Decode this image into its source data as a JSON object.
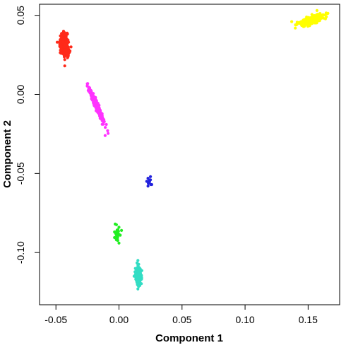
{
  "chart_data": {
    "type": "scatter",
    "title": "",
    "xlabel": "Component 1",
    "ylabel": "Component 2",
    "xlim": [
      -0.063,
      0.175
    ],
    "ylim": [
      -0.133,
      0.057
    ],
    "grid": false,
    "legend": "none",
    "x_ticks": [
      {
        "value": -0.05,
        "label": "-0.05"
      },
      {
        "value": 0.0,
        "label": "0.00"
      },
      {
        "value": 0.05,
        "label": "0.05"
      },
      {
        "value": 0.1,
        "label": "0.10"
      },
      {
        "value": 0.15,
        "label": "0.15"
      }
    ],
    "y_ticks": [
      {
        "value": 0.05,
        "label": "0.05"
      },
      {
        "value": 0.0,
        "label": "0.00"
      },
      {
        "value": -0.05,
        "label": "-0.05"
      },
      {
        "value": -0.1,
        "label": "-0.10"
      }
    ],
    "clusters": [
      {
        "color": "#ff2a1a",
        "center": [
          -0.0435,
          0.0315
        ],
        "n_points": 420,
        "points": [
          [
            -0.0435,
            0.0315
          ],
          [
            -0.047,
            0.0305
          ],
          [
            -0.04,
            0.033
          ],
          [
            -0.045,
            0.035
          ],
          [
            -0.042,
            0.028
          ],
          [
            -0.049,
            0.033
          ],
          [
            -0.038,
            0.03
          ],
          [
            -0.044,
            0.037
          ],
          [
            -0.046,
            0.026
          ],
          [
            -0.043,
            0.022
          ],
          [
            -0.043,
            0.018
          ]
        ]
      },
      {
        "color": "#ff33ff",
        "center": [
          -0.0175,
          -0.0075
        ],
        "n_points": 380,
        "points": [
          [
            -0.024,
            0.002
          ],
          [
            -0.022,
            -0.001
          ],
          [
            -0.02,
            -0.004
          ],
          [
            -0.018,
            -0.007
          ],
          [
            -0.016,
            -0.01
          ],
          [
            -0.014,
            -0.013
          ],
          [
            -0.012,
            -0.016
          ],
          [
            -0.01,
            -0.019
          ],
          [
            -0.011,
            -0.026
          ],
          [
            -0.009,
            -0.023
          ]
        ]
      },
      {
        "color": "#2222dd",
        "center": [
          0.024,
          -0.0555
        ],
        "n_points": 14,
        "points": [
          [
            0.023,
            -0.053
          ],
          [
            0.025,
            -0.054
          ],
          [
            0.024,
            -0.056
          ],
          [
            0.022,
            -0.055
          ],
          [
            0.026,
            -0.057
          ],
          [
            0.023,
            -0.058
          ],
          [
            0.025,
            -0.052
          ],
          [
            0.024,
            -0.055
          ]
        ]
      },
      {
        "color": "#22ee22",
        "center": [
          -0.0015,
          -0.089
        ],
        "n_points": 45,
        "points": [
          [
            -0.003,
            -0.082
          ],
          [
            0.0,
            -0.084
          ],
          [
            -0.002,
            -0.087
          ],
          [
            0.001,
            -0.089
          ],
          [
            -0.002,
            -0.092
          ],
          [
            0.0,
            -0.094
          ],
          [
            -0.001,
            -0.09
          ],
          [
            0.002,
            -0.086
          ]
        ]
      },
      {
        "color": "#33ddc4",
        "center": [
          0.0155,
          -0.115
        ],
        "n_points": 240,
        "points": [
          [
            0.015,
            -0.105
          ],
          [
            0.013,
            -0.11
          ],
          [
            0.017,
            -0.113
          ],
          [
            0.014,
            -0.118
          ],
          [
            0.016,
            -0.12
          ],
          [
            0.015,
            -0.123
          ],
          [
            0.012,
            -0.115
          ],
          [
            0.018,
            -0.116
          ]
        ]
      },
      {
        "color": "#ffff00",
        "center": [
          0.153,
          0.047
        ],
        "n_points": 330,
        "points": [
          [
            0.14,
            0.044
          ],
          [
            0.145,
            0.045
          ],
          [
            0.15,
            0.047
          ],
          [
            0.155,
            0.048
          ],
          [
            0.16,
            0.05
          ],
          [
            0.165,
            0.051
          ],
          [
            0.157,
            0.053
          ],
          [
            0.147,
            0.043
          ],
          [
            0.137,
            0.046
          ]
        ]
      }
    ]
  }
}
